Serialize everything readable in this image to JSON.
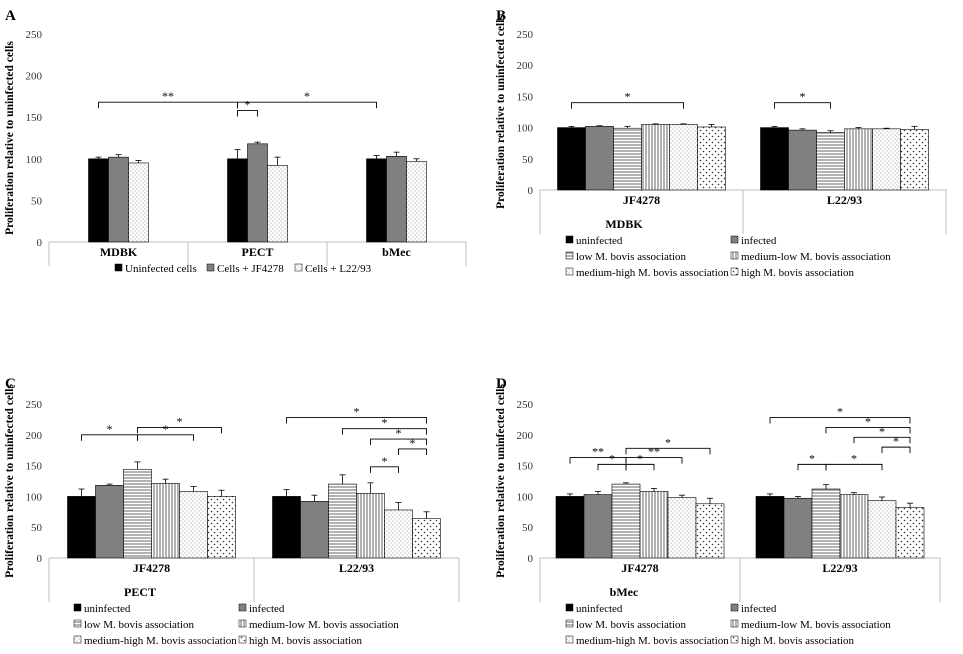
{
  "figure": {
    "ylabel": "Proliferation relative to uninfected cells",
    "yticks": [
      0,
      50,
      100,
      150,
      200,
      250
    ],
    "ylim": [
      0,
      250
    ]
  },
  "patterns": {
    "uninfected": "solid-black",
    "infected": "solid-gray",
    "low": "horizontal-lines",
    "medium_low": "vertical-lines",
    "medium_high": "fine-dots",
    "high": "dots"
  },
  "colors": {
    "black": "#000000",
    "gray": "#808080",
    "axis": "#bfbfbf"
  },
  "chart_data": [
    {
      "panel": "A",
      "type": "bar",
      "title": "",
      "xlabel": "",
      "ylabel": "Proliferation relative to uninfected cells",
      "ylim": [
        0,
        250
      ],
      "categories": [
        "MDBK",
        "PECT",
        "bMec"
      ],
      "series": [
        {
          "name": "Uninfected cells",
          "pattern": "solid-black",
          "values": [
            100,
            100,
            100
          ],
          "errors": [
            2,
            11,
            4
          ]
        },
        {
          "name": "Cells + JF4278",
          "pattern": "solid-gray",
          "values": [
            102,
            118,
            103
          ],
          "errors": [
            3,
            2,
            5
          ]
        },
        {
          "name": "Cells + L22/93",
          "pattern": "fine-dots",
          "values": [
            95,
            92,
            97
          ],
          "errors": [
            3,
            10,
            3
          ]
        }
      ],
      "significance": [
        {
          "label": "**",
          "from": [
            0,
            0
          ],
          "to": [
            1,
            0
          ],
          "y": 168
        },
        {
          "label": "*",
          "from": [
            1,
            0
          ],
          "to": [
            1,
            1
          ],
          "y": 158
        },
        {
          "label": "*",
          "from": [
            1,
            0
          ],
          "to": [
            2,
            0
          ],
          "y": 168
        }
      ]
    },
    {
      "panel": "B",
      "type": "bar",
      "title": "MDBK",
      "xlabel": "",
      "ylabel": "Proliferation relative to uninfected cells",
      "ylim": [
        0,
        250
      ],
      "categories": [
        "JF4278",
        "L22/93"
      ],
      "series": [
        {
          "name": "uninfected",
          "pattern": "solid-black",
          "values": [
            100,
            100
          ],
          "errors": [
            2,
            2
          ]
        },
        {
          "name": "infected",
          "pattern": "solid-gray",
          "values": [
            102,
            96
          ],
          "errors": [
            1,
            2
          ]
        },
        {
          "name": "low M. bovis association",
          "pattern": "horizontal-lines",
          "values": [
            99,
            92
          ],
          "errors": [
            3,
            3
          ]
        },
        {
          "name": "medium-low M. bovis association",
          "pattern": "vertical-lines",
          "values": [
            105,
            98
          ],
          "errors": [
            1,
            2
          ]
        },
        {
          "name": "medium-high M. bovis association",
          "pattern": "fine-dots",
          "values": [
            105,
            98
          ],
          "errors": [
            1,
            1
          ]
        },
        {
          "name": "high M. bovis association",
          "pattern": "dots",
          "values": [
            101,
            97
          ],
          "errors": [
            4,
            5
          ]
        }
      ],
      "significance": [
        {
          "label": "*",
          "from": [
            0,
            0
          ],
          "to": [
            0,
            4
          ],
          "y": 140
        },
        {
          "label": "*",
          "from": [
            1,
            0
          ],
          "to": [
            1,
            2
          ],
          "y": 140
        }
      ]
    },
    {
      "panel": "C",
      "type": "bar",
      "title": "PECT",
      "xlabel": "",
      "ylabel": "Proliferation relative to uninfected cells",
      "ylim": [
        0,
        250
      ],
      "categories": [
        "JF4278",
        "L22/93"
      ],
      "series": [
        {
          "name": "uninfected",
          "pattern": "solid-black",
          "values": [
            100,
            100
          ],
          "errors": [
            12,
            11
          ]
        },
        {
          "name": "infected",
          "pattern": "solid-gray",
          "values": [
            118,
            92
          ],
          "errors": [
            2,
            10
          ]
        },
        {
          "name": "low M. bovis association",
          "pattern": "horizontal-lines",
          "values": [
            144,
            120
          ],
          "errors": [
            12,
            15
          ]
        },
        {
          "name": "medium-low M. bovis association",
          "pattern": "vertical-lines",
          "values": [
            121,
            105
          ],
          "errors": [
            7,
            17
          ]
        },
        {
          "name": "medium-high M. bovis association",
          "pattern": "fine-dots",
          "values": [
            108,
            78
          ],
          "errors": [
            8,
            12
          ]
        },
        {
          "name": "high M. bovis association",
          "pattern": "dots",
          "values": [
            100,
            64
          ],
          "errors": [
            10,
            11
          ]
        }
      ],
      "significance": [
        {
          "label": "*",
          "from": [
            0,
            0
          ],
          "to": [
            0,
            2
          ],
          "y": 200
        },
        {
          "label": "*",
          "from": [
            0,
            2
          ],
          "to": [
            0,
            4
          ],
          "y": 200
        },
        {
          "label": "*",
          "from": [
            0,
            2
          ],
          "to": [
            0,
            5
          ],
          "y": 212
        },
        {
          "label": "*",
          "from": [
            1,
            0
          ],
          "to": [
            1,
            5
          ],
          "y": 228
        },
        {
          "label": "*",
          "from": [
            1,
            2
          ],
          "to": [
            1,
            5
          ],
          "y": 210
        },
        {
          "label": "*",
          "from": [
            1,
            3
          ],
          "to": [
            1,
            5
          ],
          "y": 193
        },
        {
          "label": "*",
          "from": [
            1,
            4
          ],
          "to": [
            1,
            5
          ],
          "y": 177
        },
        {
          "label": "*",
          "from": [
            1,
            3
          ],
          "to": [
            1,
            4
          ],
          "y": 148
        }
      ]
    },
    {
      "panel": "D",
      "type": "bar",
      "title": "bMec",
      "xlabel": "",
      "ylabel": "Proliferation relative to uninfected cells",
      "ylim": [
        0,
        250
      ],
      "categories": [
        "JF4278",
        "L22/93"
      ],
      "series": [
        {
          "name": "uninfected",
          "pattern": "solid-black",
          "values": [
            100,
            100
          ],
          "errors": [
            4,
            4
          ]
        },
        {
          "name": "infected",
          "pattern": "solid-gray",
          "values": [
            103,
            97
          ],
          "errors": [
            5,
            3
          ]
        },
        {
          "name": "low M. bovis association",
          "pattern": "horizontal-lines",
          "values": [
            120,
            112
          ],
          "errors": [
            2,
            7
          ]
        },
        {
          "name": "medium-low M. bovis association",
          "pattern": "vertical-lines",
          "values": [
            108,
            103
          ],
          "errors": [
            5,
            3
          ]
        },
        {
          "name": "medium-high M. bovis association",
          "pattern": "fine-dots",
          "values": [
            98,
            93
          ],
          "errors": [
            4,
            6
          ]
        },
        {
          "name": "high M. bovis association",
          "pattern": "dots",
          "values": [
            88,
            82
          ],
          "errors": [
            9,
            7
          ]
        }
      ],
      "significance": [
        {
          "label": "**",
          "from": [
            0,
            0
          ],
          "to": [
            0,
            2
          ],
          "y": 163
        },
        {
          "label": "*",
          "from": [
            0,
            1
          ],
          "to": [
            0,
            2
          ],
          "y": 152
        },
        {
          "label": "*",
          "from": [
            0,
            2
          ],
          "to": [
            0,
            3
          ],
          "y": 152
        },
        {
          "label": "**",
          "from": [
            0,
            2
          ],
          "to": [
            0,
            4
          ],
          "y": 163
        },
        {
          "label": "*",
          "from": [
            0,
            2
          ],
          "to": [
            0,
            5
          ],
          "y": 178
        },
        {
          "label": "*",
          "from": [
            1,
            0
          ],
          "to": [
            1,
            5
          ],
          "y": 228
        },
        {
          "label": "*",
          "from": [
            1,
            2
          ],
          "to": [
            1,
            5
          ],
          "y": 212
        },
        {
          "label": "*",
          "from": [
            1,
            3
          ],
          "to": [
            1,
            5
          ],
          "y": 196
        },
        {
          "label": "*",
          "from": [
            1,
            4
          ],
          "to": [
            1,
            5
          ],
          "y": 180
        },
        {
          "label": "*",
          "from": [
            1,
            1
          ],
          "to": [
            1,
            2
          ],
          "y": 152
        },
        {
          "label": "*",
          "from": [
            1,
            2
          ],
          "to": [
            1,
            4
          ],
          "y": 152
        }
      ]
    }
  ]
}
